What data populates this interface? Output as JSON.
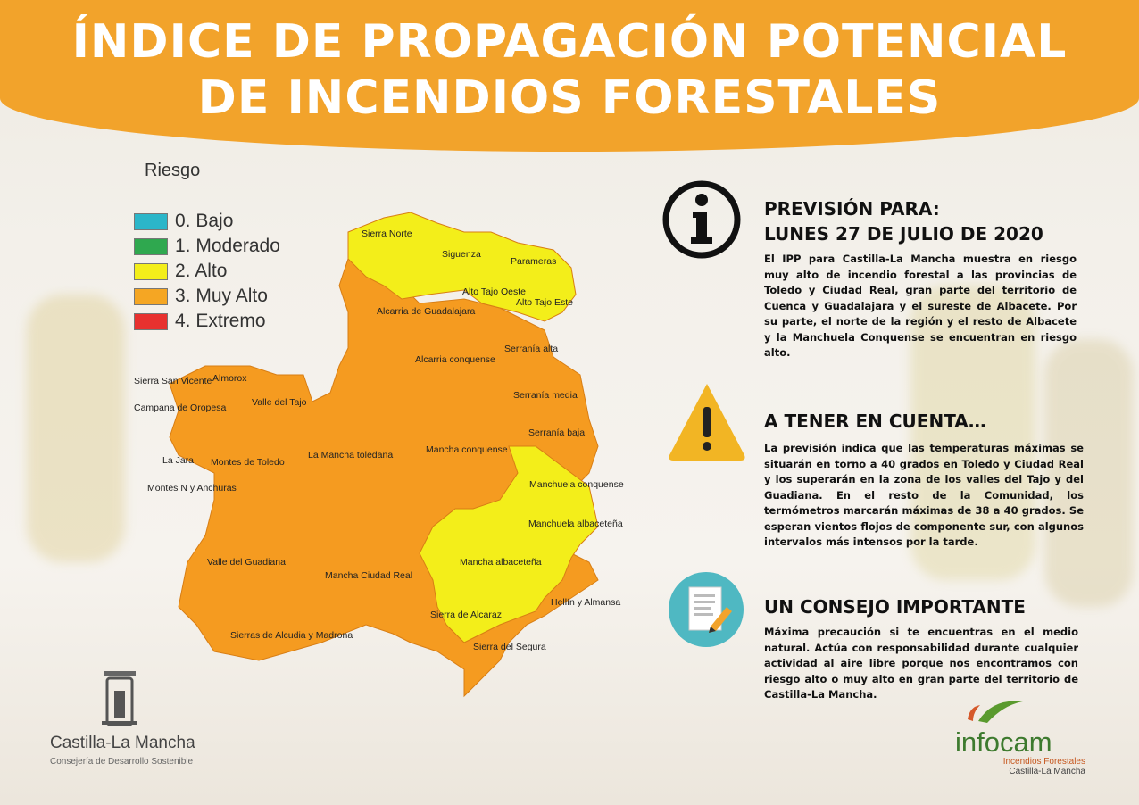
{
  "header": {
    "title_line1": "ÍNDICE DE PROPAGACIÓN POTENCIAL",
    "title_line2": "DE INCENDIOS FORESTALES"
  },
  "legend": {
    "title": "Riesgo",
    "items": [
      {
        "label": "0. Bajo",
        "color": "#2bb6c9"
      },
      {
        "label": "1. Moderado",
        "color": "#2fa84f"
      },
      {
        "label": "2. Alto",
        "color": "#f3ee1a"
      },
      {
        "label": "3. Muy Alto",
        "color": "#f5a623"
      },
      {
        "label": "4. Extremo",
        "color": "#e8312f"
      }
    ]
  },
  "map": {
    "colors": {
      "alto": "#f3ee1a",
      "muy_alto": "#f59b20",
      "border": "#d87e14"
    },
    "regions": [
      {
        "name": "Sierra Norte",
        "risk": "2. Alto"
      },
      {
        "name": "Siguenza",
        "risk": "2. Alto"
      },
      {
        "name": "Parameras",
        "risk": "2. Alto"
      },
      {
        "name": "Alto Tajo Oeste",
        "risk": "2. Alto"
      },
      {
        "name": "Alto Tajo Este",
        "risk": "2. Alto"
      },
      {
        "name": "Alcarria de Guadalajara",
        "risk": "3. Muy Alto"
      },
      {
        "name": "Serranía alta",
        "risk": "3. Muy Alto"
      },
      {
        "name": "Alcarria conquense",
        "risk": "3. Muy Alto"
      },
      {
        "name": "Serranía media",
        "risk": "3. Muy Alto"
      },
      {
        "name": "Serranía baja",
        "risk": "3. Muy Alto"
      },
      {
        "name": "Sierra San Vicente",
        "risk": "3. Muy Alto"
      },
      {
        "name": "Almorox",
        "risk": "3. Muy Alto"
      },
      {
        "name": "Valle del Tajo",
        "risk": "3. Muy Alto"
      },
      {
        "name": "Campana de Oropesa",
        "risk": "3. Muy Alto"
      },
      {
        "name": "La Mancha toledana",
        "risk": "3. Muy Alto"
      },
      {
        "name": "Mancha conquense",
        "risk": "3. Muy Alto"
      },
      {
        "name": "La Jara",
        "risk": "3. Muy Alto"
      },
      {
        "name": "Montes de Toledo",
        "risk": "3. Muy Alto"
      },
      {
        "name": "Montes N y Anchuras",
        "risk": "3. Muy Alto"
      },
      {
        "name": "Manchuela conquense",
        "risk": "2. Alto"
      },
      {
        "name": "Manchuela albaceteña",
        "risk": "2. Alto"
      },
      {
        "name": "Valle del Guadiana",
        "risk": "3. Muy Alto"
      },
      {
        "name": "Mancha albaceteña",
        "risk": "2. Alto"
      },
      {
        "name": "Mancha Ciudad Real",
        "risk": "3. Muy Alto"
      },
      {
        "name": "Hellín y Almansa",
        "risk": "3. Muy Alto"
      },
      {
        "name": "Sierra de Alcaraz",
        "risk": "2. Alto"
      },
      {
        "name": "Sierras de Alcudia y Madrona",
        "risk": "3. Muy Alto"
      },
      {
        "name": "Sierra del Segura",
        "risk": "3. Muy Alto"
      }
    ]
  },
  "forecast": {
    "icon": "info-icon",
    "title_line1": "PREVISIÓN PARA:",
    "title_line2": "LUNES 27 DE JULIO DE 2020",
    "text": "El IPP para Castilla-La Mancha muestra en riesgo muy alto de incendio forestal a las provincias de Toledo y Ciudad Real, gran parte del territorio de Cuenca y Guadalajara y el sureste de Albacete. Por su parte, el norte de la región y el resto de Albacete y la Manchuela Conquense se encuentran en riesgo alto."
  },
  "notice": {
    "icon": "warning-icon",
    "title": "A TENER EN CUENTA…",
    "text": "La previsión indica que las temperaturas máximas se situarán en torno a 40 grados en Toledo y Ciudad Real y los superarán en la zona de los valles del Tajo y del Guadiana. En el resto de la Comunidad, los termómetros marcarán máximas de 38 a 40 grados. Se esperan vientos flojos de componente sur, con algunos intervalos más intensos por la tarde."
  },
  "advice": {
    "icon": "document-pencil-icon",
    "title": "UN CONSEJO IMPORTANTE",
    "text": "Máxima precaución si te encuentras en el medio natural. Actúa con responsabilidad durante cualquier actividad al aire libre porque nos encontramos con riesgo alto o muy alto en gran parte del territorio de Castilla-La Mancha."
  },
  "logos": {
    "left_name": "Castilla-La Mancha",
    "left_sub": "Consejería de Desarrollo Sostenible",
    "right_name": "infocam",
    "right_sub1": "Incendios Forestales",
    "right_sub2": "Castilla-La Mancha"
  }
}
